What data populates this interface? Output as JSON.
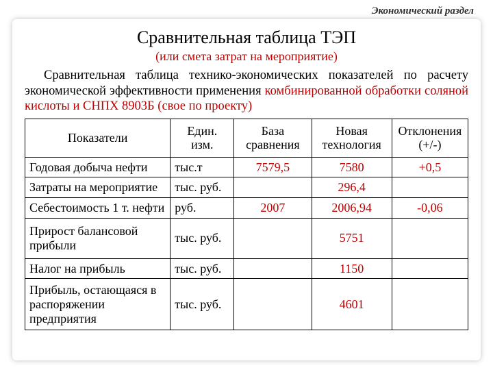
{
  "section_label": "Экономический раздел",
  "title": "Сравнительная таблица ТЭП",
  "subtitle": "(или смета затрат на мероприятие)",
  "paragraph_plain": "Сравнительная таблица технико-экономических показателей по расчету экономической эффективности применения ",
  "paragraph_highlight": "комбинированной обработки соляной кислоты и СНПХ 8903Б (свое по проекту)",
  "table": {
    "headers": {
      "name": "Показатели",
      "unit": "Един. изм.",
      "base": "База сравнения",
      "new": "Новая технология",
      "dev": "Отклонения (+/-)"
    },
    "rows": [
      {
        "name": "Годовая добыча нефти",
        "unit": "тыс.т",
        "base": "7579,5",
        "new": "7580",
        "dev": "+0,5",
        "tall": false
      },
      {
        "name": "Затраты на мероприятие",
        "unit": "тыс. руб.",
        "base": "",
        "new": "296,4",
        "dev": "",
        "tall": false
      },
      {
        "name": "Себестоимость 1 т. нефти",
        "unit": "руб.",
        "base": "2007",
        "new": "2006,94",
        "dev": "-0,06",
        "tall": false
      },
      {
        "name": "Прирост балансовой прибыли",
        "unit": "тыс. руб.",
        "base": "",
        "new": "5751",
        "dev": "",
        "tall": "2"
      },
      {
        "name": "Налог на прибыль",
        "unit": "тыс. руб.",
        "base": "",
        "new": "1150",
        "dev": "",
        "tall": false
      },
      {
        "name": "Прибыль, остающаяся в распоряжении предприятия",
        "unit": "тыс. руб.",
        "base": "",
        "new": "4601",
        "dev": "",
        "tall": "3"
      }
    ],
    "colors": {
      "value_color": "#c00000",
      "text_color": "#000000",
      "border_color": "#000000"
    }
  }
}
